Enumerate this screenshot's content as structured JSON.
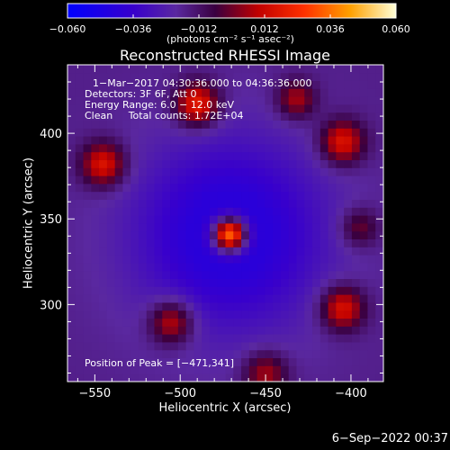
{
  "chart_data": {
    "type": "heatmap",
    "title": "Reconstructed RHESSI Image",
    "xlabel": "Heliocentric X (arcsec)",
    "ylabel": "Heliocentric Y (arcsec)",
    "xlim": [
      -566,
      -381
    ],
    "ylim": [
      255,
      440
    ],
    "x_ticks": [
      {
        "value": -550,
        "label": "−550"
      },
      {
        "value": -500,
        "label": "−500"
      },
      {
        "value": -450,
        "label": "−450"
      },
      {
        "value": -400,
        "label": "−400"
      }
    ],
    "y_ticks": [
      {
        "value": 300,
        "label": "300"
      },
      {
        "value": 350,
        "label": "350"
      },
      {
        "value": 400,
        "label": "400"
      }
    ],
    "colorbar": {
      "colormap": "IDL red-temperature",
      "range": [
        -0.06,
        0.06
      ],
      "ticks": [
        {
          "value": -0.06,
          "label": "−0.060"
        },
        {
          "value": -0.036,
          "label": "−0.036"
        },
        {
          "value": -0.012,
          "label": "−0.012"
        },
        {
          "value": 0.012,
          "label": "0.012"
        },
        {
          "value": 0.036,
          "label": "0.036"
        },
        {
          "value": 0.06,
          "label": "0.060"
        }
      ],
      "unit_label": "(photons cm⁻² s⁻¹ asec⁻²)"
    },
    "annotations": [
      "1−Mar−2017 04:30:36.000 to 04:36:36.000",
      "Detectors: 3F 6F, Att 0",
      "Energy Range: 6.0 − 12.0 keV",
      "Clean     Total counts: 1.72E+04"
    ],
    "peak_label": "Position of Peak = [−471,341]",
    "peak": {
      "x": -471,
      "y": 341,
      "value": 0.06
    },
    "background_level": -0.017,
    "sources": [
      {
        "x": -471,
        "y": 341,
        "amplitude": 0.079,
        "sigma": 7
      },
      {
        "x": -471,
        "y": 341,
        "amplitude": -0.03,
        "sigma": 40
      },
      {
        "x": -490,
        "y": 417,
        "amplitude": 0.04,
        "sigma": 9
      },
      {
        "x": -545,
        "y": 382,
        "amplitude": 0.036,
        "sigma": 9
      },
      {
        "x": -405,
        "y": 395,
        "amplitude": 0.036,
        "sigma": 9
      },
      {
        "x": -405,
        "y": 298,
        "amplitude": 0.036,
        "sigma": 9
      },
      {
        "x": -505,
        "y": 290,
        "amplitude": 0.033,
        "sigma": 9
      },
      {
        "x": -450,
        "y": 260,
        "amplitude": 0.026,
        "sigma": 9
      },
      {
        "x": -432,
        "y": 420,
        "amplitude": 0.026,
        "sigma": 8
      },
      {
        "x": -395,
        "y": 345,
        "amplitude": 0.02,
        "sigma": 8
      }
    ]
  },
  "footer": {
    "timestamp": "6−Sep−2022 00:37"
  }
}
